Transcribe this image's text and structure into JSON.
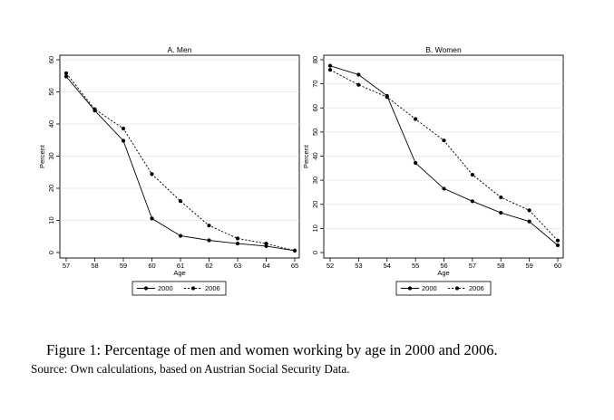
{
  "chart_data": [
    {
      "type": "line",
      "title": "A. Men",
      "xlabel": "Age",
      "ylabel": "Percent",
      "x": [
        57,
        58,
        59,
        60,
        61,
        62,
        63,
        64,
        65
      ],
      "xlim": [
        57,
        65
      ],
      "ylim": [
        0,
        60
      ],
      "yticks": [
        0,
        10,
        20,
        30,
        40,
        50,
        60
      ],
      "grid": "horizontal",
      "legend_position": "bottom",
      "series": [
        {
          "name": "2000",
          "style": "solid",
          "values": [
            54.8,
            44.2,
            34.8,
            10.6,
            5.2,
            3.8,
            2.8,
            2.0,
            0.6
          ]
        },
        {
          "name": "2006",
          "style": "dashed",
          "values": [
            55.8,
            44.6,
            38.6,
            24.4,
            16.0,
            8.4,
            4.4,
            2.8,
            0.6
          ]
        }
      ]
    },
    {
      "type": "line",
      "title": "B. Women",
      "xlabel": "Age",
      "ylabel": "Percent",
      "x": [
        52,
        53,
        54,
        55,
        56,
        57,
        58,
        59,
        60
      ],
      "xlim": [
        52,
        60
      ],
      "ylim": [
        0,
        80
      ],
      "yticks": [
        0,
        10,
        20,
        30,
        40,
        50,
        60,
        70,
        80
      ],
      "grid": "horizontal",
      "legend_position": "bottom",
      "series": [
        {
          "name": "2000",
          "style": "solid",
          "values": [
            77.5,
            73.8,
            65.0,
            37.2,
            26.5,
            21.3,
            16.5,
            12.9,
            3.0
          ]
        },
        {
          "name": "2006",
          "style": "dashed",
          "values": [
            75.8,
            69.6,
            64.5,
            55.4,
            46.5,
            32.3,
            22.9,
            17.5,
            5.0
          ]
        }
      ]
    }
  ],
  "caption": "Figure 1: Percentage of men and women working by age in 2000 and 2006.",
  "source": "Source: Own calculations, based on Austrian Social Security Data."
}
